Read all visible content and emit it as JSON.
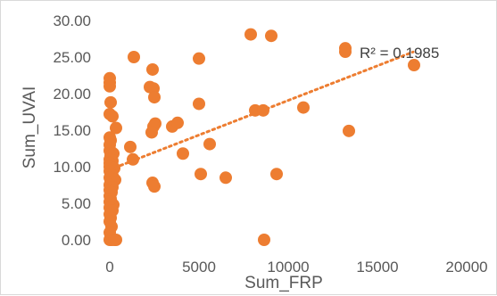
{
  "chart_data": {
    "type": "scatter",
    "title": "",
    "xlabel": "Sum_FRP",
    "ylabel": "Sum_UVAI",
    "xlim": [
      0,
      20000
    ],
    "ylim": [
      0,
      30
    ],
    "x_ticks": [
      "0",
      "5000",
      "10000",
      "15000",
      "20000"
    ],
    "y_ticks": [
      "0.00",
      "5.00",
      "10.00",
      "15.00",
      "20.00",
      "25.00",
      "30.00"
    ],
    "grid": false,
    "legend": "none",
    "trendline": {
      "type": "linear",
      "style": "dotted",
      "label": "R² = 0.1985",
      "x_range": [
        0,
        17000
      ],
      "y_start": 9.6,
      "y_end": 25.7
    },
    "marker_color": "#ed7d31",
    "series": [
      {
        "points": [
          [
            0,
            22.1
          ],
          [
            0,
            21.5
          ],
          [
            0,
            21.0
          ],
          [
            50,
            18.8
          ],
          [
            0,
            17.2
          ],
          [
            150,
            16.9
          ],
          [
            350,
            15.3
          ],
          [
            0,
            14.0
          ],
          [
            50,
            13.6
          ],
          [
            0,
            13.0
          ],
          [
            0,
            12.2
          ],
          [
            100,
            12.0
          ],
          [
            200,
            11.8
          ],
          [
            50,
            11.5
          ],
          [
            0,
            11.0
          ],
          [
            150,
            10.8
          ],
          [
            0,
            10.5
          ],
          [
            100,
            10.3
          ],
          [
            0,
            10.0
          ],
          [
            250,
            9.8
          ],
          [
            0,
            9.4
          ],
          [
            50,
            9.0
          ],
          [
            150,
            8.8
          ],
          [
            0,
            8.5
          ],
          [
            300,
            8.2
          ],
          [
            50,
            7.9
          ],
          [
            0,
            7.5
          ],
          [
            150,
            7.2
          ],
          [
            0,
            6.8
          ],
          [
            100,
            6.5
          ],
          [
            0,
            6.0
          ],
          [
            50,
            5.6
          ],
          [
            0,
            5.2
          ],
          [
            200,
            4.8
          ],
          [
            0,
            4.4
          ],
          [
            150,
            4.0
          ],
          [
            0,
            3.5
          ],
          [
            50,
            3.0
          ],
          [
            0,
            2.5
          ],
          [
            100,
            1.8
          ],
          [
            0,
            1.0
          ],
          [
            50,
            0.4
          ],
          [
            0,
            0.0
          ],
          [
            100,
            0.0
          ],
          [
            250,
            0.0
          ],
          [
            350,
            0.0
          ],
          [
            1350,
            25.0
          ],
          [
            1150,
            12.7
          ],
          [
            1300,
            11.0
          ],
          [
            2250,
            20.9
          ],
          [
            2450,
            20.7
          ],
          [
            2500,
            19.5
          ],
          [
            2400,
            23.3
          ],
          [
            2550,
            15.9
          ],
          [
            2450,
            15.5
          ],
          [
            2350,
            14.7
          ],
          [
            2400,
            7.8
          ],
          [
            2500,
            7.3
          ],
          [
            3500,
            15.5
          ],
          [
            3800,
            16.0
          ],
          [
            4100,
            11.8
          ],
          [
            5000,
            24.8
          ],
          [
            5000,
            18.6
          ],
          [
            5100,
            9.0
          ],
          [
            5600,
            13.1
          ],
          [
            6500,
            8.5
          ],
          [
            7900,
            28.1
          ],
          [
            9050,
            27.9
          ],
          [
            8150,
            17.7
          ],
          [
            8600,
            17.7
          ],
          [
            8650,
            0.0
          ],
          [
            9350,
            9.0
          ],
          [
            10850,
            18.1
          ],
          [
            13200,
            26.2
          ],
          [
            13400,
            14.9
          ],
          [
            17050,
            23.9
          ]
        ]
      }
    ]
  }
}
